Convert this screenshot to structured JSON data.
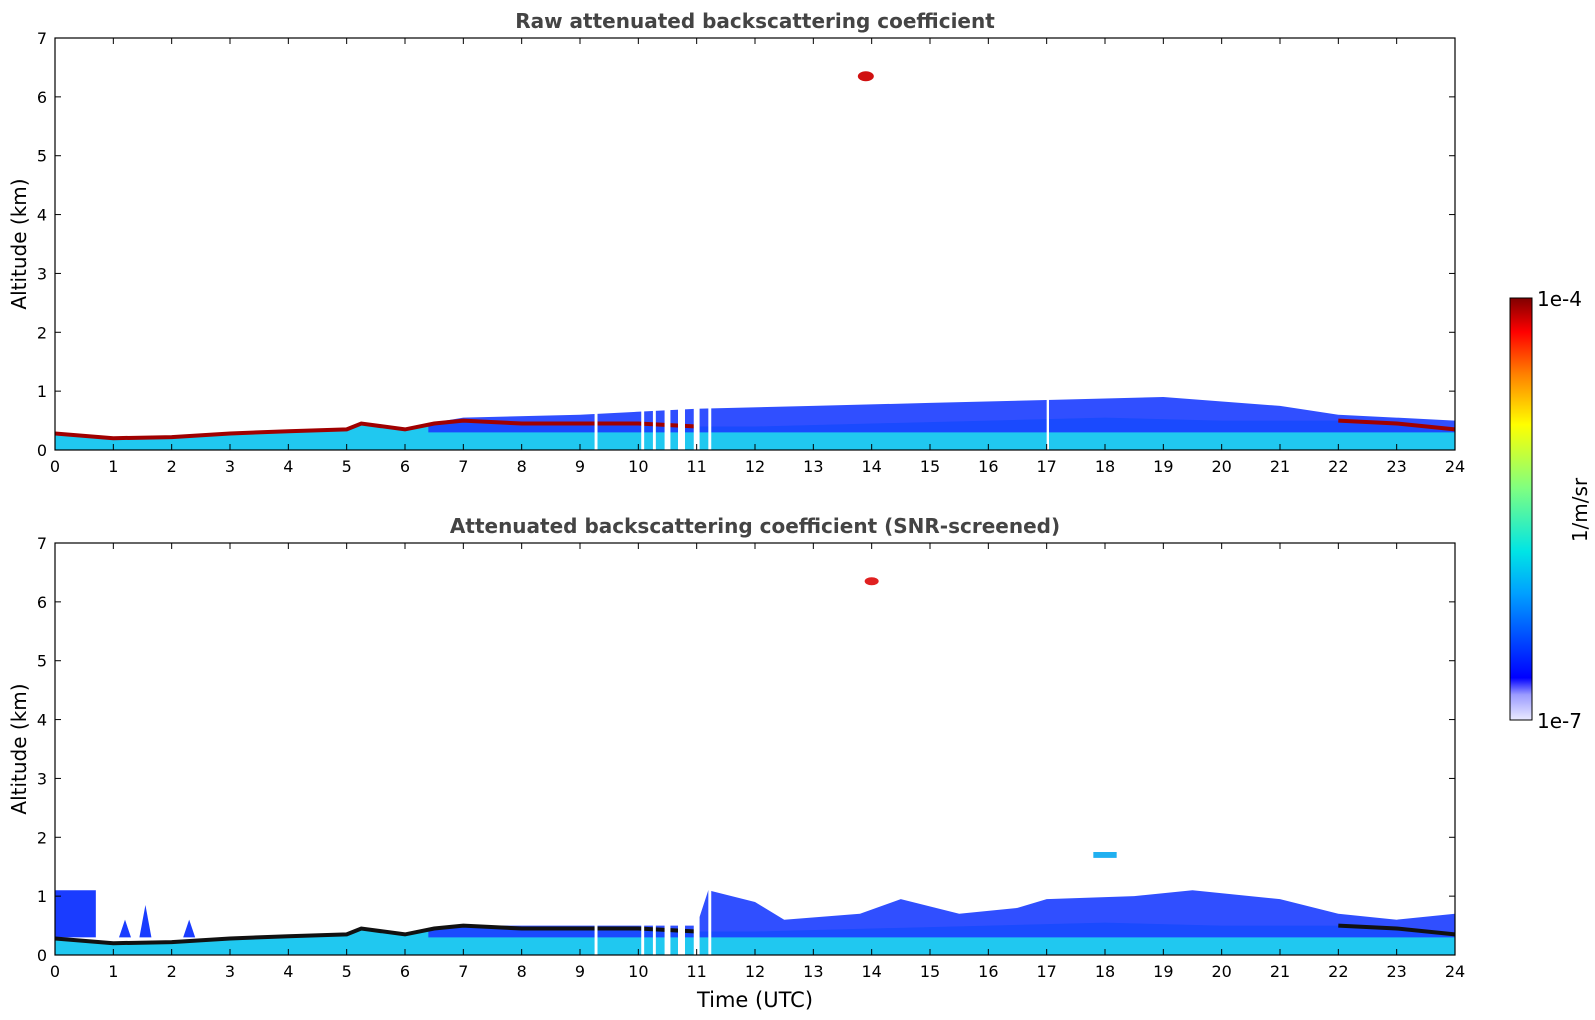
{
  "chart_data": [
    {
      "type": "heatmap",
      "title": "Raw attenuated backscattering coefficient",
      "ylabel": "Altitude (km)",
      "xlabel": "",
      "xlim": [
        0,
        24
      ],
      "ylim": [
        0,
        7
      ],
      "xticks": [
        0,
        1,
        2,
        3,
        4,
        5,
        6,
        7,
        8,
        9,
        10,
        11,
        12,
        13,
        14,
        15,
        16,
        17,
        18,
        19,
        20,
        21,
        22,
        23,
        24
      ],
      "yticks": [
        0,
        1,
        2,
        3,
        4,
        5,
        6,
        7
      ],
      "grid": false,
      "gaps": [
        [
          9.25,
          9.3
        ],
        [
          10.05,
          10.1
        ],
        [
          10.25,
          10.3
        ],
        [
          10.45,
          10.55
        ],
        [
          10.68,
          10.8
        ],
        [
          10.95,
          11.05
        ],
        [
          11.2,
          11.25
        ],
        [
          17.0,
          17.04
        ]
      ],
      "boundary_layer_top": [
        [
          0,
          0.28
        ],
        [
          1,
          0.2
        ],
        [
          2,
          0.22
        ],
        [
          3,
          0.28
        ],
        [
          4,
          0.32
        ],
        [
          5,
          0.35
        ],
        [
          5.25,
          0.45
        ],
        [
          6,
          0.35
        ],
        [
          6.5,
          0.45
        ],
        [
          7,
          0.5
        ],
        [
          8,
          0.45
        ],
        [
          9,
          0.45
        ],
        [
          10,
          0.45
        ],
        [
          11,
          0.4
        ],
        [
          12,
          0.4
        ],
        [
          14,
          0.45
        ],
        [
          16,
          0.5
        ],
        [
          18,
          0.55
        ],
        [
          20,
          0.5
        ],
        [
          22,
          0.5
        ],
        [
          23,
          0.45
        ],
        [
          24,
          0.35
        ]
      ]
    },
    {
      "type": "heatmap",
      "title": "Attenuated backscattering coefficient (SNR-screened)",
      "ylabel": "Altitude (km)",
      "xlabel": "Time (UTC)",
      "xlim": [
        0,
        24
      ],
      "ylim": [
        0,
        7
      ],
      "xticks": [
        0,
        1,
        2,
        3,
        4,
        5,
        6,
        7,
        8,
        9,
        10,
        11,
        12,
        13,
        14,
        15,
        16,
        17,
        18,
        19,
        20,
        21,
        22,
        23,
        24
      ],
      "yticks": [
        0,
        1,
        2,
        3,
        4,
        5,
        6,
        7
      ],
      "grid": false,
      "features": [
        {
          "x": [
            0,
            0.7
          ],
          "y": [
            0,
            1.1
          ]
        },
        {
          "x": [
            11,
            24
          ],
          "y": [
            0,
            1.0
          ]
        },
        {
          "x": [
            13.9,
            14.1
          ],
          "y": [
            6.3,
            6.4
          ]
        },
        {
          "x": [
            17.8,
            18.2
          ],
          "y": [
            1.65,
            1.75
          ]
        }
      ]
    }
  ],
  "colorbar": {
    "label": "1/m/sr",
    "max_label": "1e-4",
    "min_label": "1e-7",
    "colormap": "jet",
    "colors": [
      "#eaeaff",
      "#0000ff",
      "#00a0ff",
      "#00e5e5",
      "#80ff80",
      "#ffff00",
      "#ff8000",
      "#ff0000",
      "#800000"
    ]
  }
}
